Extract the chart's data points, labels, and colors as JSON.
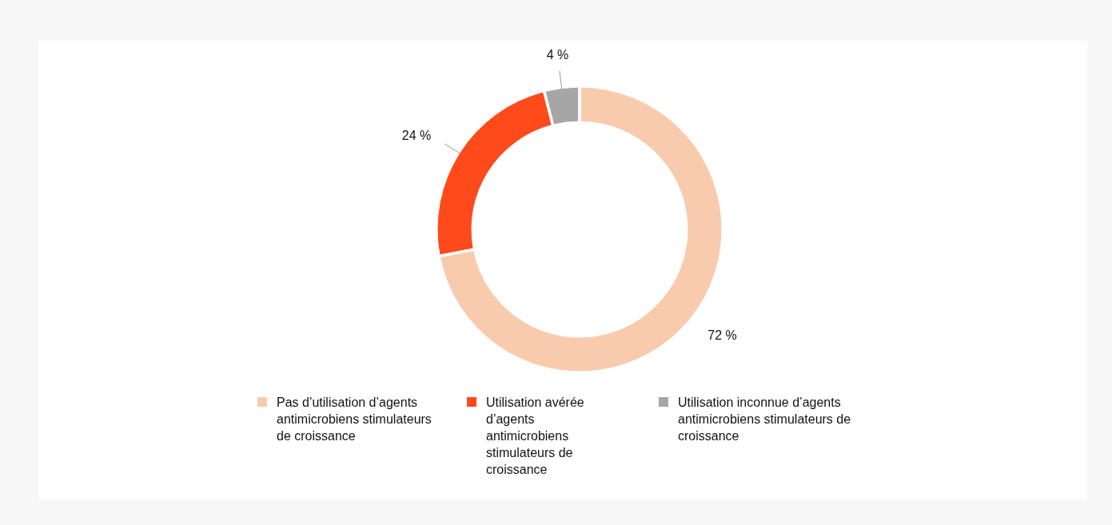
{
  "chart_data": {
    "type": "donut",
    "categories": [
      "Pas d’utilisation d’agents antimicrobiens stimulateurs de croissance",
      "Utilisation avérée d’agents antimicrobiens stimulateurs de croissance",
      "Utilisation inconnue d’agents antimicrobiens stimulateurs de croissance"
    ],
    "values": [
      72,
      24,
      4
    ],
    "colors": [
      "#f8cbad",
      "#ff4a1c",
      "#a6a6a6"
    ],
    "value_labels": [
      "72 %",
      "24 %",
      "4 %"
    ],
    "legend": "bottom"
  }
}
